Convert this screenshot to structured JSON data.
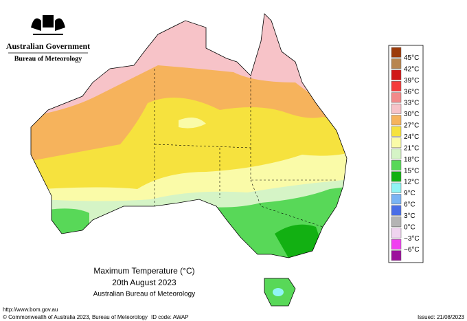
{
  "header": {
    "government": "Australian Government",
    "agency": "Bureau of Meteorology"
  },
  "title": {
    "line1": "Maximum Temperature (°C)",
    "line2": "20th August 2023",
    "line3": "Australian Bureau of Meteorology"
  },
  "legend": {
    "colors": [
      "#9c3b0b",
      "#b88650",
      "#d01818",
      "#f43c3c",
      "#f28a8a",
      "#f7c3c8",
      "#f6b35c",
      "#f6e23e",
      "#fafba8",
      "#d5f4c6",
      "#58d858",
      "#12b012",
      "#90f4f4",
      "#7ab4f4",
      "#4a6ee6",
      "#b4b4b4",
      "#efd4ef",
      "#f040f0",
      "#9c109c"
    ],
    "labels": [
      "45°C",
      "42°C",
      "39°C",
      "36°C",
      "33°C",
      "30°C",
      "27°C",
      "24°C",
      "21°C",
      "18°C",
      "15°C",
      "12°C",
      "9°C",
      "6°C",
      "3°C",
      "0°C",
      "−3°C",
      "−6°C"
    ]
  },
  "footer": {
    "url": "http://www.bom.gov.au",
    "copyright": "© Commonwealth of Australia 2023, Bureau of Meteorology",
    "id_code": "ID code: AWAP",
    "issued": "Issued: 21/08/2023"
  }
}
